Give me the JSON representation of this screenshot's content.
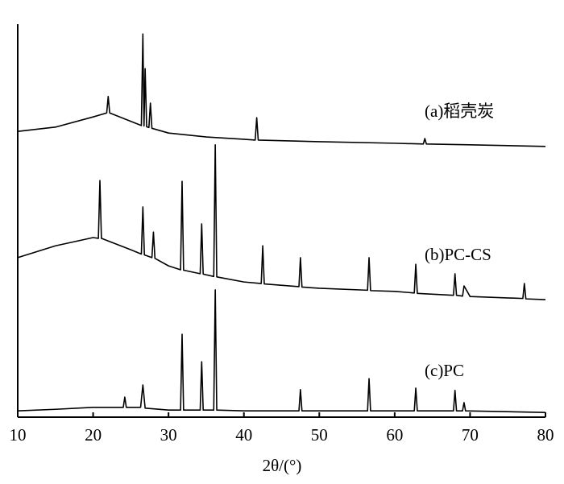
{
  "chart_data": {
    "type": "line",
    "x_label": "2θ/(°)",
    "xlim": [
      10,
      80
    ],
    "xticks": [
      10,
      20,
      30,
      40,
      50,
      60,
      70,
      80
    ],
    "ylim": [
      0,
      100
    ],
    "grid": false,
    "series": [
      {
        "name": "(a)稻壳炭",
        "color": "#000000",
        "x": [
          10,
          15,
          20,
          21.8,
          22,
          22.2,
          26.4,
          26.6,
          26.75,
          26.9,
          27.1,
          27.4,
          27.6,
          27.8,
          30,
          35,
          40,
          41.5,
          41.7,
          41.9,
          50,
          60,
          63.8,
          64,
          64.2,
          70,
          80
        ],
        "values": [
          72.7,
          73.8,
          76.4,
          77.4,
          81.6,
          77.4,
          74.2,
          97.5,
          74.1,
          88.7,
          73.9,
          73.7,
          79.9,
          73.5,
          72.3,
          71.3,
          70.7,
          70.5,
          76.2,
          70.5,
          70.1,
          69.7,
          69.5,
          70.9,
          69.5,
          69.3,
          68.9
        ]
      },
      {
        "name": "(b)PC-CS",
        "color": "#000000",
        "x": [
          10,
          15,
          20,
          20.7,
          20.9,
          21.1,
          25,
          26.4,
          26.6,
          26.8,
          27.8,
          28,
          28.2,
          30,
          31.6,
          31.8,
          32,
          34.2,
          34.4,
          34.6,
          36,
          36.2,
          36.4,
          40,
          42.3,
          42.5,
          42.7,
          47.3,
          47.5,
          47.7,
          50,
          56.4,
          56.6,
          56.8,
          60,
          62.6,
          62.8,
          63,
          67.8,
          68,
          68.2,
          69,
          69.2,
          70,
          77,
          77.2,
          77.4,
          80
        ],
        "values": [
          40.6,
          43.6,
          45.7,
          45.5,
          60.2,
          45.5,
          42.6,
          41.5,
          53.5,
          41.3,
          40.6,
          47.1,
          40.4,
          38.5,
          37.5,
          60.0,
          37.4,
          36.5,
          49.2,
          36.4,
          35.8,
          69.3,
          35.7,
          34.4,
          34.0,
          43.6,
          33.9,
          33.2,
          40.6,
          33.1,
          32.8,
          32.3,
          40.6,
          32.2,
          32.0,
          31.6,
          38.9,
          31.5,
          31.0,
          36.5,
          31.0,
          30.8,
          33.4,
          30.7,
          30.2,
          34.0,
          30.1,
          29.9
        ]
      },
      {
        "name": "(c)PC",
        "color": "#000000",
        "x": [
          10,
          15,
          20,
          24,
          24.2,
          24.4,
          26.3,
          26.6,
          26.9,
          30,
          31.6,
          31.8,
          32.0,
          34.2,
          34.4,
          34.6,
          36.0,
          36.2,
          36.4,
          40,
          47.3,
          47.5,
          47.7,
          56.4,
          56.6,
          56.8,
          62.6,
          62.8,
          63.0,
          67.8,
          68.0,
          68.2,
          69.0,
          69.2,
          69.4,
          80
        ],
        "values": [
          1.6,
          2.0,
          2.5,
          2.5,
          5.1,
          2.5,
          2.5,
          8.2,
          2.3,
          1.8,
          1.8,
          21.1,
          1.8,
          1.8,
          14.1,
          1.8,
          1.8,
          32.4,
          1.8,
          1.6,
          1.6,
          7.0,
          1.6,
          1.6,
          9.8,
          1.6,
          1.6,
          7.4,
          1.6,
          1.6,
          6.8,
          1.6,
          1.6,
          3.7,
          1.6,
          1.2
        ]
      }
    ]
  }
}
